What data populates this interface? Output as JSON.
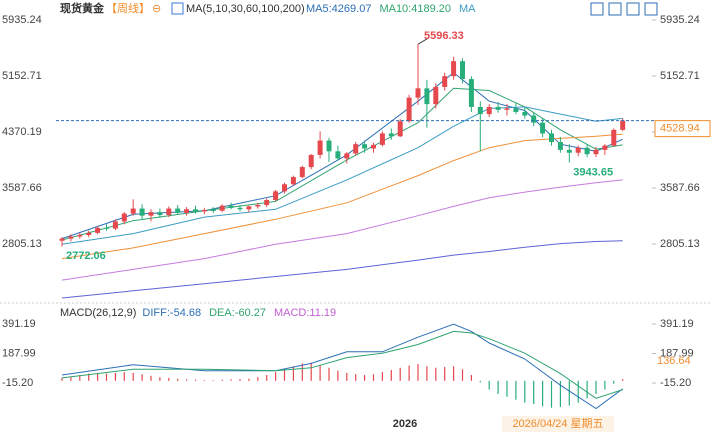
{
  "header": {
    "instrument": "现货黄金",
    "period": "【周线】",
    "ma_label": "MA(5,10,30,60,100,200)"
  },
  "x_axis": {
    "year": "2026",
    "cursor_date": "2026/04/24 星期五"
  },
  "chart_data": [
    {
      "type": "candlestick",
      "ylim": [
        2022,
        6019
      ],
      "yticks": [
        5935.24,
        5152.71,
        4370.19,
        3587.66,
        2805.13
      ],
      "up_color": "#e5484d",
      "down_color": "#27ae7a",
      "last_price_color": "#f08c2b",
      "candles": {
        "open": [
          2850,
          2880,
          2910,
          2930,
          2960,
          3030,
          3020,
          3120,
          3230,
          3300,
          3200,
          3250,
          3210,
          3300,
          3240,
          3290,
          3260,
          3280,
          3270,
          3340,
          3310,
          3290,
          3330,
          3350,
          3420,
          3540,
          3640,
          3740,
          3880,
          4050,
          4250,
          4100,
          4000,
          4070,
          4200,
          4140,
          4190,
          4350,
          4310,
          4520,
          4850,
          4980,
          4760,
          5000,
          5150,
          5360,
          5110,
          4720,
          4620,
          4720,
          4680,
          4700,
          4650,
          4600,
          4500,
          4350,
          4230,
          4120,
          4080,
          4150,
          4060,
          4120,
          4180,
          4400
        ],
        "high": [
          2900,
          2940,
          2960,
          2990,
          3050,
          3080,
          3150,
          3250,
          3430,
          3360,
          3290,
          3300,
          3330,
          3350,
          3320,
          3340,
          3310,
          3320,
          3360,
          3380,
          3350,
          3340,
          3380,
          3440,
          3560,
          3660,
          3760,
          3900,
          4060,
          4380,
          4290,
          4180,
          4090,
          4230,
          4250,
          4220,
          4380,
          4420,
          4550,
          4890,
          5596.33,
          5100,
          5050,
          5200,
          5420,
          5400,
          5150,
          4800,
          4760,
          4790,
          4760,
          4780,
          4720,
          4640,
          4560,
          4400,
          4300,
          4200,
          4180,
          4200,
          4160,
          4200,
          4420,
          4560
        ],
        "low": [
          2772.06,
          2840,
          2880,
          2900,
          2940,
          2990,
          3000,
          3080,
          3200,
          3150,
          3120,
          3170,
          3180,
          3220,
          3200,
          3230,
          3220,
          3240,
          3250,
          3290,
          3260,
          3250,
          3300,
          3320,
          3400,
          3510,
          3620,
          3720,
          3850,
          4000,
          3950,
          3970,
          3930,
          4040,
          4080,
          4080,
          4170,
          4260,
          4300,
          4500,
          4750,
          4430,
          4700,
          4950,
          5100,
          5050,
          4650,
          4100,
          4580,
          4640,
          4600,
          4620,
          4560,
          4450,
          4300,
          4180,
          4080,
          3943.65,
          4030,
          4020,
          4020,
          4050,
          4170,
          4380
        ],
        "close": [
          2880,
          2910,
          2930,
          2960,
          3030,
          3020,
          3120,
          3230,
          3300,
          3200,
          3250,
          3210,
          3300,
          3240,
          3290,
          3260,
          3280,
          3270,
          3340,
          3310,
          3290,
          3330,
          3350,
          3420,
          3540,
          3640,
          3740,
          3880,
          4050,
          4250,
          4100,
          4000,
          4070,
          4200,
          4140,
          4190,
          4350,
          4310,
          4520,
          4850,
          4980,
          4760,
          5000,
          5150,
          5360,
          5110,
          4720,
          4620,
          4720,
          4680,
          4700,
          4650,
          4600,
          4500,
          4350,
          4230,
          4120,
          4080,
          4150,
          4060,
          4120,
          4180,
          4400,
          4528.94
        ]
      },
      "series": [
        {
          "name": "MA5:4269.07",
          "color": "#2c6fb7",
          "x": [
            0,
            8,
            16,
            24,
            32,
            40,
            44,
            48,
            52,
            56,
            60,
            63
          ],
          "values": [
            2880,
            3220,
            3270,
            3480,
            4050,
            4800,
            5200,
            4800,
            4670,
            4200,
            4100,
            4269.07
          ]
        },
        {
          "name": "MA10:4189.20",
          "color": "#2fa36f",
          "x": [
            0,
            8,
            16,
            24,
            32,
            40,
            44,
            48,
            52,
            56,
            60,
            63
          ],
          "values": [
            2860,
            3130,
            3270,
            3400,
            3980,
            4500,
            4980,
            4950,
            4720,
            4400,
            4130,
            4189.2
          ]
        },
        {
          "name": "MA",
          "color": "#3a9cc4",
          "x": [
            0,
            8,
            16,
            24,
            32,
            40,
            44,
            48,
            52,
            56,
            60,
            63
          ],
          "values": [
            2800,
            2950,
            3180,
            3290,
            3700,
            4150,
            4450,
            4700,
            4720,
            4620,
            4520,
            4560
          ]
        },
        {
          "color": "#f0913a",
          "x": [
            0,
            8,
            16,
            24,
            32,
            40,
            44,
            48,
            52,
            56,
            60,
            63
          ],
          "values": [
            2600,
            2750,
            2950,
            3150,
            3380,
            3760,
            3970,
            4150,
            4250,
            4280,
            4310,
            4340
          ]
        },
        {
          "color": "#c77be0",
          "x": [
            0,
            8,
            16,
            24,
            32,
            40,
            44,
            48,
            52,
            56,
            60,
            63
          ],
          "values": [
            2300,
            2450,
            2600,
            2800,
            2950,
            3200,
            3330,
            3450,
            3530,
            3600,
            3660,
            3700
          ]
        },
        {
          "color": "#5b63d6",
          "x": [
            0,
            8,
            16,
            24,
            32,
            40,
            44,
            48,
            52,
            56,
            60,
            63
          ],
          "values": [
            2050,
            2150,
            2250,
            2350,
            2450,
            2580,
            2650,
            2700,
            2760,
            2810,
            2840,
            2850
          ]
        }
      ]
    },
    {
      "type": "macd",
      "title": "MACD(26,12,9)",
      "legend": [
        "DIFF:-54.68",
        "DEA:-60.27",
        "MACD:11.19"
      ],
      "ylim": [
        -235,
        501
      ],
      "yticks": [
        391.19,
        187.99,
        {
          "value": -15.2,
          "label": "-15.20"
        }
      ],
      "marker": 136.64,
      "up_color": "#e5484d",
      "down_color": "#27ae7a",
      "histogram": [
        20,
        30,
        40,
        50,
        55,
        50,
        55,
        60,
        55,
        45,
        35,
        25,
        20,
        15,
        10,
        8,
        5,
        5,
        8,
        10,
        12,
        15,
        25,
        40,
        60,
        80,
        100,
        120,
        125,
        110,
        90,
        70,
        55,
        45,
        40,
        45,
        60,
        75,
        90,
        105,
        115,
        100,
        90,
        95,
        100,
        80,
        40,
        -10,
        -60,
        -90,
        -110,
        -130,
        -150,
        -160,
        -175,
        -185,
        -180,
        -170,
        -150,
        -120,
        -90,
        -60,
        -20,
        11.19
      ],
      "series": [
        {
          "name": "DIFF",
          "color": "#2c6fb7",
          "x": [
            0,
            8,
            16,
            24,
            28,
            32,
            36,
            40,
            44,
            46,
            48,
            52,
            56,
            60,
            63
          ],
          "values": [
            40,
            110,
            70,
            70,
            120,
            200,
            200,
            300,
            390,
            340,
            260,
            150,
            -30,
            -190,
            -54.68
          ]
        },
        {
          "name": "DEA",
          "color": "#2fa36f",
          "x": [
            0,
            8,
            16,
            24,
            28,
            32,
            36,
            40,
            44,
            46,
            48,
            52,
            56,
            60,
            63
          ],
          "values": [
            20,
            80,
            80,
            70,
            90,
            160,
            190,
            250,
            340,
            330,
            290,
            190,
            50,
            -120,
            -60.27
          ]
        }
      ]
    }
  ]
}
